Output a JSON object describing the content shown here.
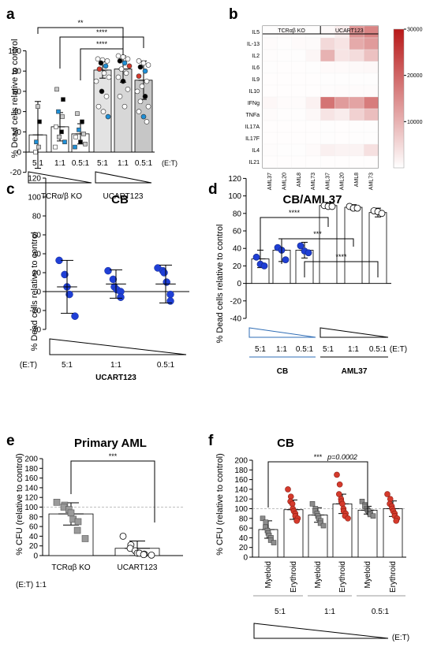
{
  "colors": {
    "grey_fill": "#bdbdbd",
    "blue": "#1f3fd6",
    "red": "#d53a2c",
    "heat_low": "#ffffff",
    "heat_high": "#b81818",
    "dash": "#aaaaaa"
  },
  "chart_data": [
    {
      "panel": "a",
      "type": "bar",
      "ylabel": "% Dead cells relative to control",
      "ylim": [
        -20,
        100
      ],
      "categories": [
        "5:1",
        "1:1",
        "0.5:1",
        "5:1",
        "1:1",
        "0.5:1"
      ],
      "et_label": "(E:T)",
      "group_labels": [
        "TCRα/β KO",
        "UCART123"
      ],
      "series": [
        {
          "values": [
            17,
            25,
            18,
            81,
            82,
            71
          ],
          "errors": [
            33,
            14,
            10,
            8,
            13,
            19
          ]
        }
      ],
      "significance": [
        "**",
        "****",
        "****"
      ]
    },
    {
      "panel": "b",
      "type": "heatmap",
      "col_groups": [
        "TCRαβ KO",
        "UCART123"
      ],
      "cols": [
        "AML37",
        "AML20",
        "AML8",
        "AML73",
        "AML37",
        "AML20",
        "AML8",
        "AML73"
      ],
      "rows": [
        "IL5",
        "IL-13",
        "IL2",
        "IL6",
        "IL9",
        "IL10",
        "IFNg",
        "TNFa",
        "IL17A",
        "IL17F",
        "IL4",
        "IL21"
      ],
      "values": [
        [
          300,
          200,
          200,
          300,
          800,
          2500,
          14000,
          16000
        ],
        [
          500,
          300,
          600,
          700,
          5000,
          3500,
          11000,
          13000
        ],
        [
          400,
          300,
          300,
          1200,
          10000,
          3500,
          4500,
          8000
        ],
        [
          300,
          200,
          200,
          300,
          600,
          600,
          800,
          900
        ],
        [
          200,
          200,
          200,
          200,
          300,
          300,
          300,
          300
        ],
        [
          200,
          200,
          200,
          200,
          400,
          500,
          500,
          500
        ],
        [
          1000,
          500,
          500,
          1800,
          18000,
          13000,
          12000,
          17000
        ],
        [
          500,
          300,
          300,
          900,
          3500,
          2500,
          6000,
          8500
        ],
        [
          200,
          200,
          200,
          200,
          300,
          200,
          300,
          300
        ],
        [
          200,
          200,
          200,
          200,
          300,
          200,
          300,
          300
        ],
        [
          400,
          300,
          300,
          600,
          2000,
          1500,
          1500,
          4000
        ],
        [
          200,
          200,
          200,
          200,
          200,
          200,
          200,
          200
        ]
      ],
      "colorbar_ticks": [
        10000,
        20000,
        30000
      ],
      "zmax": 30000
    },
    {
      "panel": "c",
      "type": "scatter",
      "title": "CB",
      "ylabel": "% Dead cells relative to control",
      "ylim": [
        -40,
        120
      ],
      "categories": [
        "5:1",
        "1:1",
        "0.5:1"
      ],
      "et_label": "(E:T)",
      "group_label": "UCART123",
      "series": [
        {
          "means": [
            5,
            8,
            8
          ],
          "errors": [
            28,
            15,
            20
          ],
          "points": [
            [
              33,
              18,
              5,
              -3,
              -26
            ],
            [
              22,
              13,
              5,
              2,
              0,
              -6
            ],
            [
              25,
              22,
              20,
              10,
              -3,
              -10
            ]
          ]
        }
      ]
    },
    {
      "panel": "d",
      "type": "bar",
      "title": "CB/AML37",
      "ylabel": "% Dead cells relative to control",
      "ylim": [
        -40,
        120
      ],
      "categories": [
        "5:1",
        "1:1",
        "0.5:1",
        "5:1",
        "1:1",
        "0.5:1"
      ],
      "et_label": "(E:T)",
      "group_labels": [
        "CB",
        "AML37"
      ],
      "series": [
        {
          "values": [
            28,
            38,
            38,
            89,
            87,
            81
          ],
          "errors": [
            10,
            13,
            9,
            3,
            3,
            5
          ],
          "points": [
            [
              30,
              22,
              20
            ],
            [
              41,
              38,
              27
            ],
            [
              43,
              37,
              35
            ],
            [
              89,
              88,
              88
            ],
            [
              88,
              86,
              86
            ],
            [
              83,
              82,
              80
            ]
          ]
        }
      ],
      "significance": [
        "****",
        "***",
        "****"
      ]
    },
    {
      "panel": "e",
      "type": "bar",
      "title": "Primary AML",
      "ylabel": "% CFU (relative to control)",
      "ylim": [
        0,
        200
      ],
      "categories": [
        "TCRαβ KO",
        "UCART123"
      ],
      "series": [
        {
          "values": [
            86,
            15
          ],
          "errors": [
            23,
            15
          ],
          "points": [
            [
              110,
              104,
              100,
              95,
              88,
              75,
              70,
              52,
              35
            ],
            [
              40,
              22,
              15,
              10,
              5,
              5,
              3,
              2,
              1
            ]
          ]
        }
      ],
      "reference_line": 100,
      "significance": [
        "***"
      ],
      "et_text": "(E:T)  1:1"
    },
    {
      "panel": "f",
      "type": "bar",
      "title": "CB",
      "ylabel": "% CFU (relative to control)",
      "ylim": [
        0,
        200
      ],
      "categories": [
        "Myeloid",
        "Erythroid",
        "Myeloid",
        "Erythroid",
        "Myeloid",
        "Erythroid"
      ],
      "ratio_labels": [
        "5:1",
        "1:1",
        "0.5:1"
      ],
      "et_label": "(E:T)",
      "series": [
        {
          "values": [
            57,
            98,
            87,
            110,
            97,
            100
          ],
          "errors": [
            18,
            20,
            15,
            20,
            8,
            16
          ],
          "points": [
            [
              80,
              72,
              62,
              55,
              50,
              45,
              40,
              35,
              30
            ],
            [
              140,
              125,
              115,
              110,
              100,
              95,
              90,
              85,
              80,
              75
            ],
            [
              110,
              100,
              95,
              90,
              85,
              80,
              75,
              70,
              65
            ],
            [
              170,
              150,
              130,
              120,
              115,
              110,
              100,
              95,
              90,
              85,
              80
            ],
            [
              115,
              108,
              105,
              100,
              97,
              95,
              90,
              88,
              85
            ],
            [
              130,
              120,
              110,
              105,
              100,
              95,
              90,
              85,
              80,
              75
            ]
          ]
        }
      ],
      "reference_line": 100,
      "significance": [
        "***",
        "p=0.0002"
      ]
    }
  ]
}
